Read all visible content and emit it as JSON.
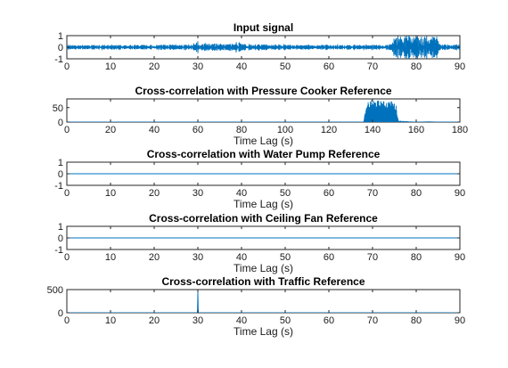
{
  "chart_data": [
    {
      "type": "line",
      "title": "Input signal",
      "xlabel": "",
      "ylabel": "",
      "xlim": [
        0,
        90
      ],
      "ylim": [
        -1,
        1
      ],
      "x_ticks": [
        0,
        10,
        20,
        30,
        40,
        50,
        60,
        70,
        80,
        90
      ],
      "y_ticks": [
        -1,
        0,
        1
      ],
      "grid": false,
      "color": "#0072BD",
      "series": [
        {
          "x": [
            0,
            10,
            20,
            29,
            30,
            31,
            38,
            39,
            40,
            50,
            60,
            70,
            74.5,
            75,
            80,
            85,
            85.5,
            90
          ],
          "amplitude": [
            0.2,
            0.2,
            0.2,
            0.25,
            0.55,
            0.3,
            0.3,
            0.5,
            0.3,
            0.2,
            0.2,
            0.2,
            0.25,
            1.0,
            1.0,
            1.0,
            0.25,
            0.2
          ]
        }
      ]
    },
    {
      "type": "line",
      "title": "Cross-correlation with Pressure Cooker Reference",
      "xlabel": "Time Lag (s)",
      "ylabel": "",
      "xlim": [
        0,
        180
      ],
      "ylim": [
        0,
        80
      ],
      "x_ticks": [
        0,
        20,
        40,
        60,
        80,
        100,
        120,
        140,
        160,
        180
      ],
      "y_ticks": [
        0,
        50
      ],
      "grid": false,
      "color": "#0072BD",
      "series": [
        {
          "x": [
            0,
            136,
            136.5,
            138,
            140,
            142,
            144,
            146,
            148,
            150,
            151,
            151.5,
            152,
            160,
            166,
            170,
            180
          ],
          "amplitude": [
            0,
            0,
            30,
            70,
            78,
            76,
            74,
            72,
            75,
            68,
            55,
            20,
            2,
            0,
            1,
            0,
            0
          ]
        }
      ]
    },
    {
      "type": "line",
      "title": "Cross-correlation with Water Pump Reference",
      "xlabel": "Time Lag (s)",
      "ylabel": "",
      "xlim": [
        0,
        90
      ],
      "ylim": [
        -1,
        1
      ],
      "x_ticks": [
        0,
        10,
        20,
        30,
        40,
        50,
        60,
        70,
        80,
        90
      ],
      "y_ticks": [
        -1,
        0,
        1
      ],
      "grid": false,
      "color": "#0072BD",
      "series": [
        {
          "x": [
            0,
            90
          ],
          "values": [
            0,
            0
          ]
        }
      ]
    },
    {
      "type": "line",
      "title": "Cross-correlation with Ceiling Fan Reference",
      "xlabel": "Time Lag (s)",
      "ylabel": "",
      "xlim": [
        0,
        90
      ],
      "ylim": [
        -1,
        1
      ],
      "x_ticks": [
        0,
        10,
        20,
        30,
        40,
        50,
        60,
        70,
        80,
        90
      ],
      "y_ticks": [
        -1,
        0,
        1
      ],
      "grid": false,
      "color": "#0072BD",
      "series": [
        {
          "x": [
            0,
            90
          ],
          "values": [
            0,
            0
          ]
        }
      ]
    },
    {
      "type": "line",
      "title": "Cross-correlation with Traffic Reference",
      "xlabel": "Time Lag (s)",
      "ylabel": "",
      "xlim": [
        0,
        90
      ],
      "ylim": [
        0,
        500
      ],
      "x_ticks": [
        0,
        10,
        20,
        30,
        40,
        50,
        60,
        70,
        80,
        90
      ],
      "y_ticks": [
        0,
        500
      ],
      "grid": false,
      "color": "#0072BD",
      "series": [
        {
          "x": [
            0,
            29.9,
            30,
            30.1,
            90
          ],
          "values": [
            0,
            0,
            480,
            0,
            0
          ]
        }
      ]
    }
  ]
}
